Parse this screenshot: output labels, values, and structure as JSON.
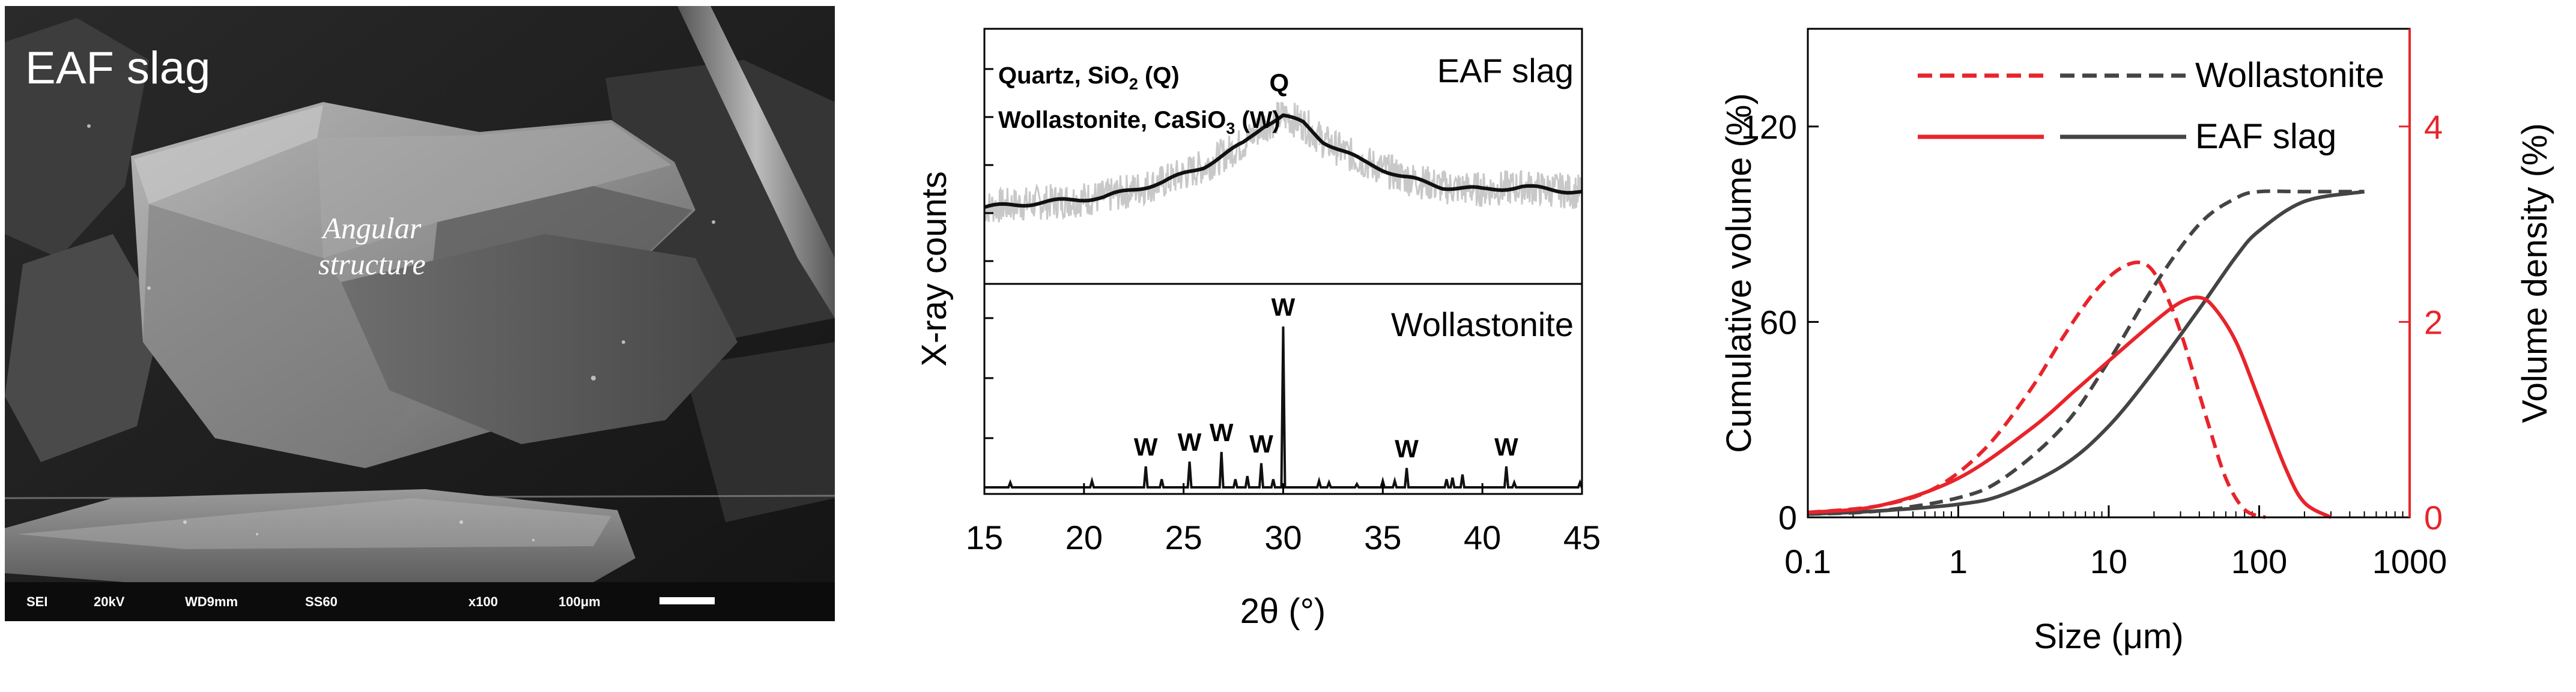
{
  "sem": {
    "label": "EAF slag",
    "annotation_line1": "Angular",
    "annotation_line2": "structure",
    "info": [
      "SEI",
      "20kV",
      "WD9mm",
      "SS60",
      "x100",
      "100μm"
    ]
  },
  "chart_data": [
    {
      "type": "line",
      "xlabel_prefix": "2θ",
      "xlabel_unit": "(°)",
      "ylabel": "X-ray counts",
      "xlim": [
        15,
        45
      ],
      "x_ticks": [
        15,
        20,
        25,
        30,
        35,
        40,
        45
      ],
      "panels": [
        {
          "label": "EAF slag",
          "legend_line1": "Quartz, SiO",
          "legend_line1_sub": "2",
          "legend_line1_tail": " (Q)",
          "legend_line2": "Wollastonite, CaSiO",
          "legend_line2_sub": "3",
          "legend_line2_tail": " (W)",
          "series": [
            {
              "name": "raw",
              "color": "#c8c8c8",
              "x": [
                15,
                18,
                21,
                24,
                26,
                28,
                29,
                30,
                31,
                32,
                34,
                36,
                38,
                40,
                42,
                45
              ],
              "y": [
                0.3,
                0.32,
                0.34,
                0.4,
                0.46,
                0.55,
                0.62,
                0.66,
                0.63,
                0.56,
                0.48,
                0.42,
                0.38,
                0.37,
                0.38,
                0.36
              ]
            },
            {
              "name": "smoothed",
              "color": "#111111",
              "x": [
                15,
                18,
                21,
                24,
                26,
                28,
                29,
                30,
                31,
                32,
                34,
                36,
                38,
                40,
                42,
                45
              ],
              "y": [
                0.3,
                0.32,
                0.34,
                0.4,
                0.46,
                0.55,
                0.62,
                0.66,
                0.63,
                0.56,
                0.48,
                0.42,
                0.38,
                0.37,
                0.38,
                0.36
              ]
            }
          ],
          "peak_labels": [
            {
              "text": "Q",
              "x": 29.8
            }
          ]
        },
        {
          "label": "Wollastonite",
          "color": "#111111",
          "peaks": [
            {
              "x": 16.3,
              "h": 0.03
            },
            {
              "x": 20.4,
              "h": 0.04
            },
            {
              "x": 23.1,
              "h": 0.13
            },
            {
              "x": 23.9,
              "h": 0.05
            },
            {
              "x": 25.3,
              "h": 0.16
            },
            {
              "x": 26.9,
              "h": 0.22
            },
            {
              "x": 27.6,
              "h": 0.05
            },
            {
              "x": 28.2,
              "h": 0.07
            },
            {
              "x": 28.9,
              "h": 0.15
            },
            {
              "x": 29.5,
              "h": 0.05
            },
            {
              "x": 30.0,
              "h": 1.0
            },
            {
              "x": 31.8,
              "h": 0.04
            },
            {
              "x": 32.3,
              "h": 0.03
            },
            {
              "x": 33.7,
              "h": 0.02
            },
            {
              "x": 35.0,
              "h": 0.04
            },
            {
              "x": 35.6,
              "h": 0.04
            },
            {
              "x": 36.2,
              "h": 0.12
            },
            {
              "x": 38.2,
              "h": 0.05
            },
            {
              "x": 38.5,
              "h": 0.06
            },
            {
              "x": 39.0,
              "h": 0.08
            },
            {
              "x": 41.2,
              "h": 0.13
            },
            {
              "x": 41.6,
              "h": 0.03
            },
            {
              "x": 44.9,
              "h": 0.03
            }
          ],
          "peak_labels": [
            {
              "text": "W",
              "x": 23.1
            },
            {
              "text": "W",
              "x": 25.3
            },
            {
              "text": "W",
              "x": 26.9
            },
            {
              "text": "W",
              "x": 28.9
            },
            {
              "text": "W",
              "x": 30.0
            },
            {
              "text": "W",
              "x": 36.2
            },
            {
              "text": "W",
              "x": 41.2
            }
          ]
        }
      ]
    },
    {
      "type": "line",
      "xlabel": "Size (μm)",
      "ylabel_left": "Cumulative volume (%)",
      "ylabel_right": "Volume density (%)",
      "x_scale": "log",
      "xlim": [
        0.1,
        1000
      ],
      "ylim_left": [
        0,
        150
      ],
      "ylim_right": [
        0,
        5
      ],
      "x_ticks": [
        0.1,
        1,
        10,
        100,
        1000
      ],
      "x_tick_labels": [
        "0.1",
        "1",
        "10",
        "100",
        "1000"
      ],
      "y_ticks_left": [
        0,
        60,
        120
      ],
      "y_ticks_right": [
        0,
        2,
        4
      ],
      "legend": {
        "entries": [
          {
            "text": "Wollastonite",
            "style": "dashed"
          },
          {
            "text": "EAF slag",
            "style": "solid"
          }
        ],
        "colors": [
          "#e8242b",
          "#444444"
        ]
      },
      "series": [
        {
          "name": "Wollastonite",
          "curve": "cumulative",
          "axis": "left",
          "style": "dashed",
          "color": "#444444",
          "x": [
            0.1,
            0.3,
            1,
            2,
            5,
            10,
            20,
            40,
            70,
            100,
            200,
            500
          ],
          "y": [
            1,
            2,
            6,
            12,
            28,
            48,
            71,
            90,
            98,
            100,
            100,
            100
          ]
        },
        {
          "name": "EAF slag",
          "curve": "cumulative",
          "axis": "left",
          "style": "solid",
          "color": "#444444",
          "x": [
            0.1,
            0.3,
            1,
            2,
            5,
            10,
            20,
            40,
            70,
            100,
            200,
            500
          ],
          "y": [
            1,
            2,
            4,
            7,
            16,
            28,
            45,
            64,
            80,
            88,
            97,
            100
          ]
        },
        {
          "name": "Wollastonite",
          "curve": "density",
          "axis": "right",
          "style": "dashed",
          "color": "#e8242b",
          "x": [
            0.1,
            0.3,
            0.7,
            1.5,
            3,
            5,
            8,
            12,
            17,
            22,
            30,
            45,
            60,
            80,
            110
          ],
          "y": [
            0.05,
            0.12,
            0.3,
            0.7,
            1.3,
            1.85,
            2.3,
            2.55,
            2.6,
            2.4,
            1.9,
            1.0,
            0.4,
            0.08,
            0
          ]
        },
        {
          "name": "EAF slag",
          "curve": "density",
          "axis": "right",
          "style": "solid",
          "color": "#e8242b",
          "x": [
            0.1,
            0.3,
            1,
            3,
            6,
            10,
            20,
            30,
            40,
            50,
            70,
            100,
            150,
            200,
            300
          ],
          "y": [
            0.05,
            0.12,
            0.4,
            0.9,
            1.3,
            1.6,
            2.0,
            2.2,
            2.25,
            2.15,
            1.8,
            1.2,
            0.5,
            0.15,
            0
          ]
        }
      ]
    }
  ]
}
